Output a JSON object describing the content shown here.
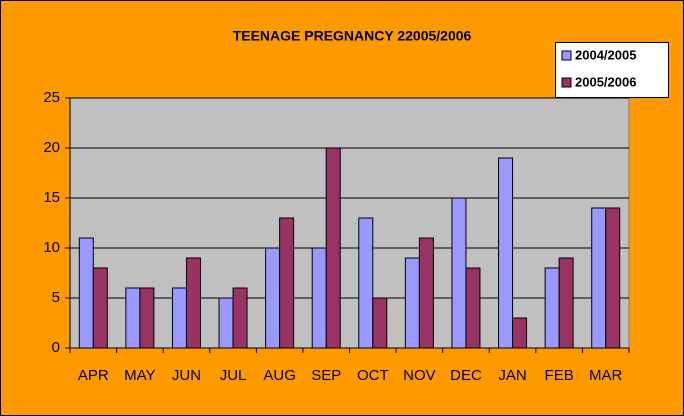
{
  "chart_data": {
    "type": "bar",
    "title": "TEENAGE PREGNANCY 22005/2006",
    "categories": [
      "APR",
      "MAY",
      "JUN",
      "JUL",
      "AUG",
      "SEP",
      "OCT",
      "NOV",
      "DEC",
      "JAN",
      "FEB",
      "MAR"
    ],
    "series": [
      {
        "name": "2004/2005",
        "color": "#9999ff",
        "values": [
          11,
          6,
          6,
          5,
          10,
          10,
          13,
          9,
          15,
          19,
          8,
          14
        ]
      },
      {
        "name": "2005/2006",
        "color": "#993366",
        "values": [
          8,
          6,
          9,
          6,
          13,
          20,
          5,
          11,
          8,
          3,
          9,
          14
        ]
      }
    ],
    "ylim": [
      0,
      25
    ],
    "yticks": [
      0,
      5,
      10,
      15,
      20,
      25
    ],
    "grid": true,
    "legend": "top-right"
  }
}
